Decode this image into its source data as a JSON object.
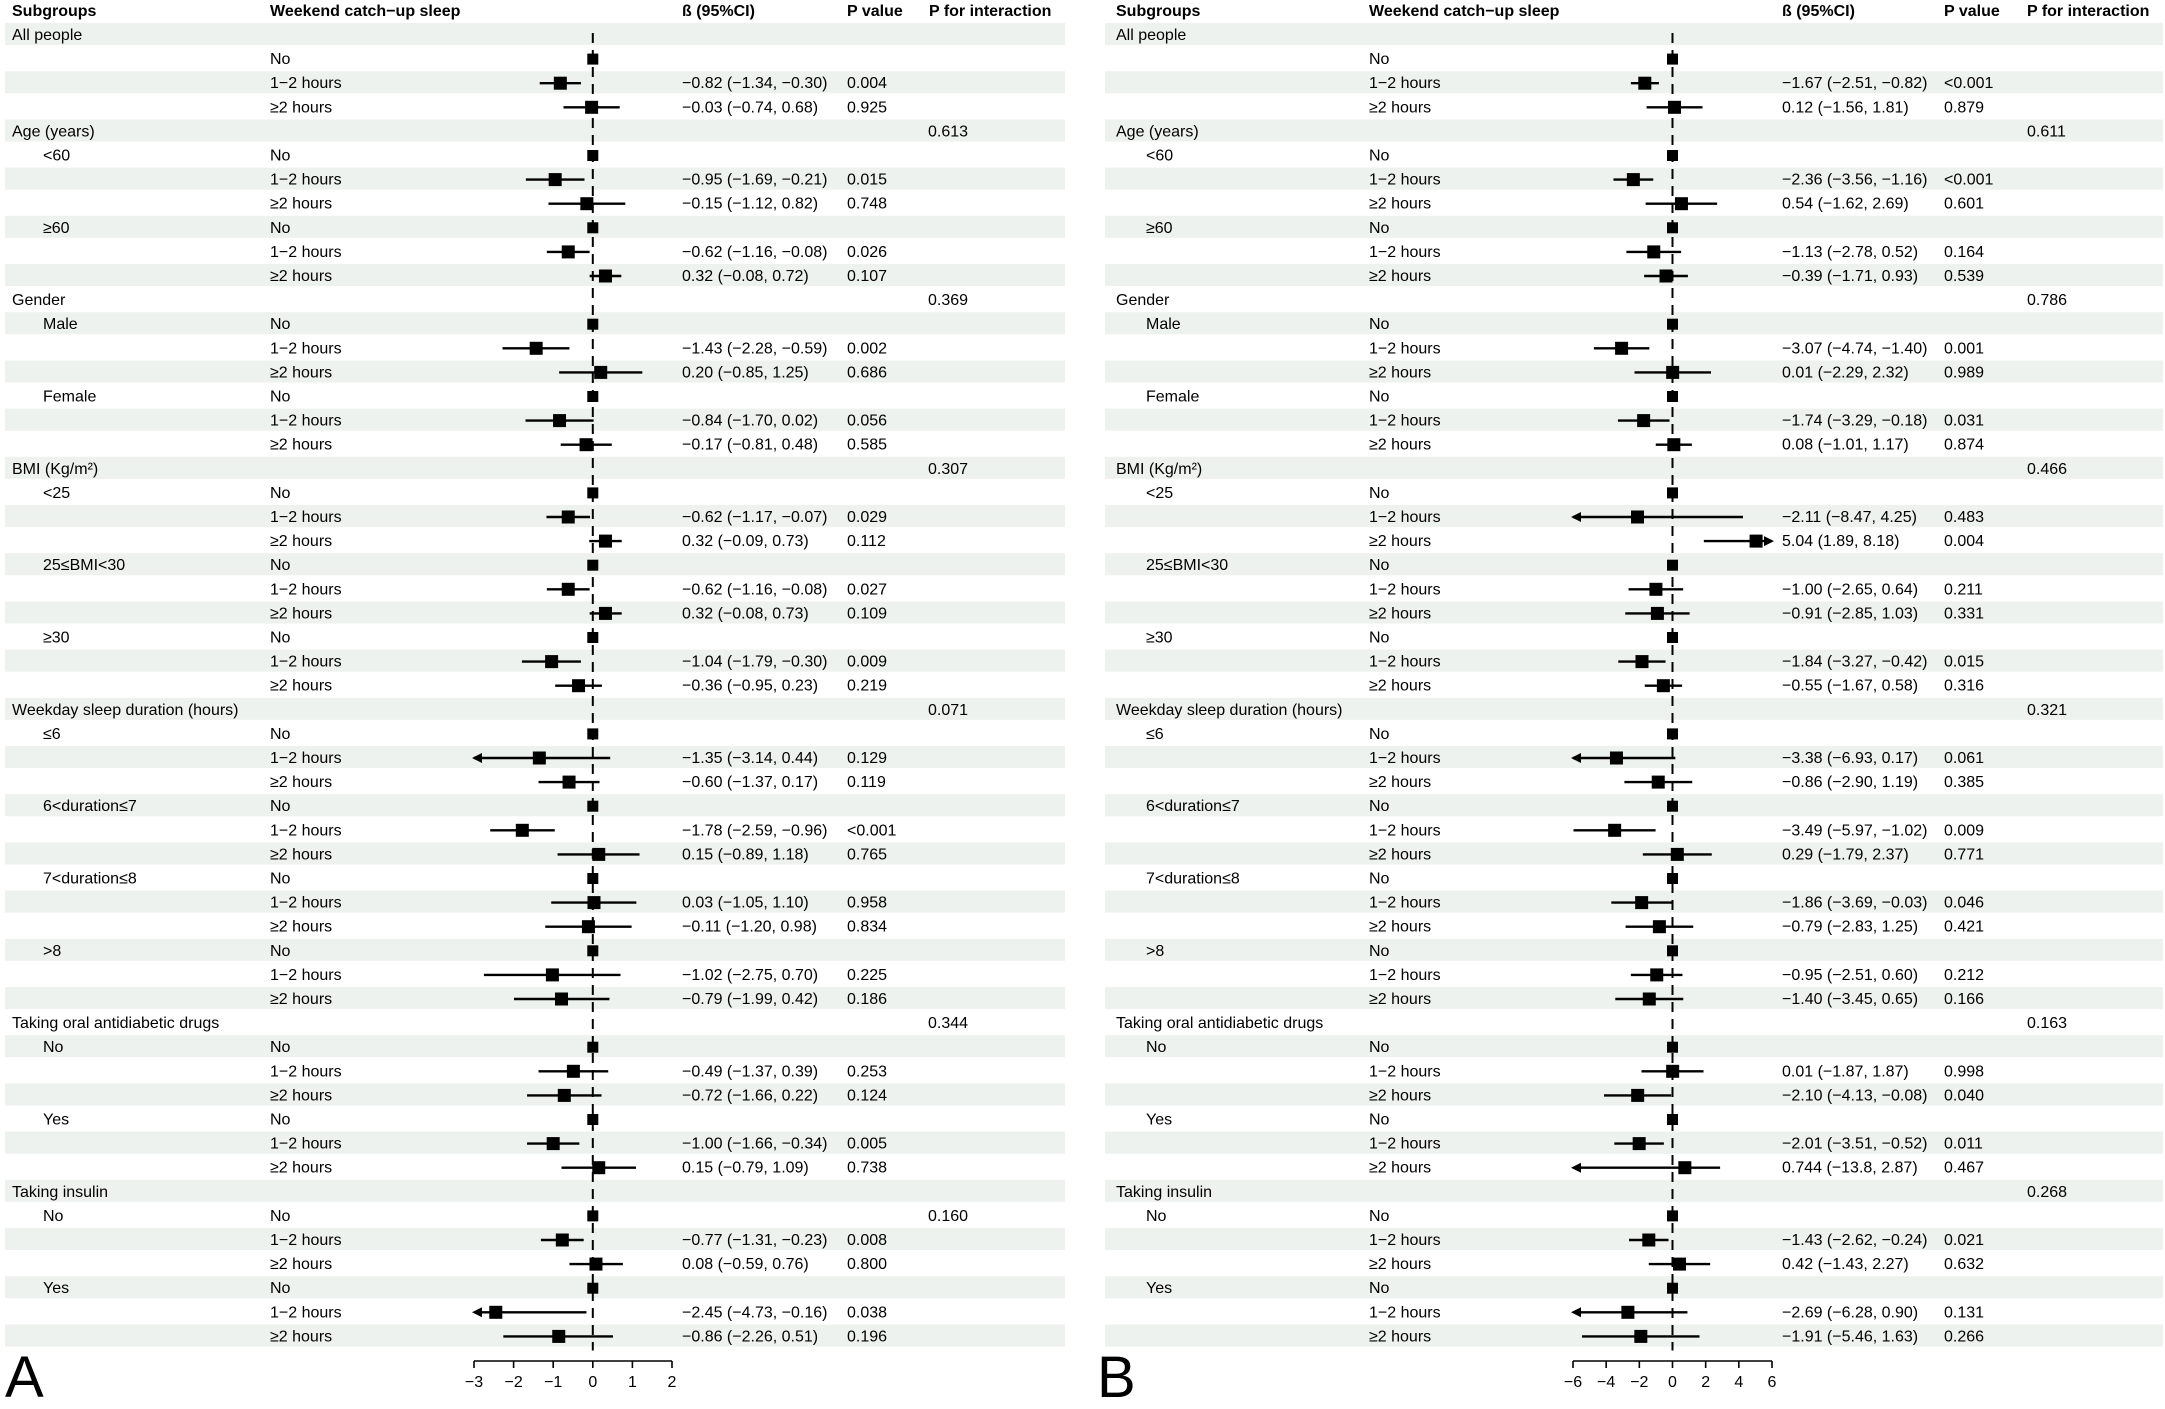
{
  "figure": {
    "headers": {
      "subgroups": "Subgroups",
      "weekend": "Weekend catch−up sleep",
      "beta": "ß (95%CI)",
      "pvalue": "P value",
      "pint": "P for interaction"
    },
    "colors": {
      "band": "#eef2ee",
      "mark": "#000000",
      "ref": "#000000"
    }
  },
  "chart_data": [
    {
      "type": "forest",
      "panel_label": "A",
      "xlim": [
        -3,
        2
      ],
      "ticks": [
        -3,
        -2,
        -1,
        0,
        1,
        2
      ],
      "tick_labels": [
        "−3",
        "−2",
        "−1",
        "0",
        "1",
        "2"
      ],
      "rows": [
        {
          "g": "All people"
        },
        {
          "w": "No",
          "est": 0
        },
        {
          "w": "1−2 hours",
          "est": -0.82,
          "lo": -1.34,
          "hi": -0.3,
          "ci": "−0.82 (−1.34, −0.30)",
          "p": "0.004"
        },
        {
          "w": "≥2 hours",
          "est": -0.03,
          "lo": -0.74,
          "hi": 0.68,
          "ci": "−0.03 (−0.74, 0.68)",
          "p": "0.925"
        },
        {
          "g": "Age (years)",
          "pi": "0.613"
        },
        {
          "s": "<60",
          "w": "No",
          "est": 0
        },
        {
          "w": "1−2 hours",
          "est": -0.95,
          "lo": -1.69,
          "hi": -0.21,
          "ci": "−0.95 (−1.69, −0.21)",
          "p": "0.015"
        },
        {
          "w": "≥2 hours",
          "est": -0.15,
          "lo": -1.12,
          "hi": 0.82,
          "ci": "−0.15 (−1.12, 0.82)",
          "p": "0.748"
        },
        {
          "s": "≥60",
          "w": "No",
          "est": 0
        },
        {
          "w": "1−2 hours",
          "est": -0.62,
          "lo": -1.16,
          "hi": -0.08,
          "ci": "−0.62 (−1.16, −0.08)",
          "p": "0.026"
        },
        {
          "w": "≥2 hours",
          "est": 0.32,
          "lo": -0.08,
          "hi": 0.72,
          "ci": "0.32 (−0.08, 0.72)",
          "p": "0.107"
        },
        {
          "g": "Gender",
          "pi": "0.369"
        },
        {
          "s": "Male",
          "w": "No",
          "est": 0
        },
        {
          "w": "1−2 hours",
          "est": -1.43,
          "lo": -2.28,
          "hi": -0.59,
          "ci": "−1.43 (−2.28, −0.59)",
          "p": "0.002"
        },
        {
          "w": "≥2 hours",
          "est": 0.2,
          "lo": -0.85,
          "hi": 1.25,
          "ci": "0.20 (−0.85, 1.25)",
          "p": "0.686"
        },
        {
          "s": "Female",
          "w": "No",
          "est": 0
        },
        {
          "w": "1−2 hours",
          "est": -0.84,
          "lo": -1.7,
          "hi": 0.02,
          "ci": "−0.84 (−1.70, 0.02)",
          "p": "0.056"
        },
        {
          "w": "≥2 hours",
          "est": -0.17,
          "lo": -0.81,
          "hi": 0.48,
          "ci": "−0.17 (−0.81, 0.48)",
          "p": "0.585"
        },
        {
          "g": "BMI (Kg/m²)",
          "pi": "0.307"
        },
        {
          "s": "<25",
          "w": "No",
          "est": 0
        },
        {
          "w": "1−2 hours",
          "est": -0.62,
          "lo": -1.17,
          "hi": -0.07,
          "ci": "−0.62 (−1.17, −0.07)",
          "p": "0.029"
        },
        {
          "w": "≥2 hours",
          "est": 0.32,
          "lo": -0.09,
          "hi": 0.73,
          "ci": "0.32 (−0.09, 0.73)",
          "p": "0.112"
        },
        {
          "s": "25≤BMI<30",
          "w": "No",
          "est": 0
        },
        {
          "w": "1−2 hours",
          "est": -0.62,
          "lo": -1.16,
          "hi": -0.08,
          "ci": "−0.62 (−1.16, −0.08)",
          "p": "0.027"
        },
        {
          "w": "≥2 hours",
          "est": 0.32,
          "lo": -0.08,
          "hi": 0.73,
          "ci": "0.32 (−0.08, 0.73)",
          "p": "0.109"
        },
        {
          "s": "≥30",
          "w": "No",
          "est": 0
        },
        {
          "w": "1−2 hours",
          "est": -1.04,
          "lo": -1.79,
          "hi": -0.3,
          "ci": "−1.04 (−1.79, −0.30)",
          "p": "0.009"
        },
        {
          "w": "≥2 hours",
          "est": -0.36,
          "lo": -0.95,
          "hi": 0.23,
          "ci": "−0.36 (−0.95, 0.23)",
          "p": "0.219"
        },
        {
          "g": "Weekday sleep duration (hours)",
          "pi": "0.071"
        },
        {
          "s": "≤6",
          "w": "No",
          "est": 0
        },
        {
          "w": "1−2 hours",
          "est": -1.35,
          "lo": -3.14,
          "hi": 0.44,
          "ci": "−1.35 (−3.14, 0.44)",
          "p": "0.129"
        },
        {
          "w": "≥2 hours",
          "est": -0.6,
          "lo": -1.37,
          "hi": 0.17,
          "ci": "−0.60 (−1.37, 0.17)",
          "p": "0.119"
        },
        {
          "s": "6<duration≤7",
          "w": "No",
          "est": 0
        },
        {
          "w": "1−2 hours",
          "est": -1.78,
          "lo": -2.59,
          "hi": -0.96,
          "ci": "−1.78 (−2.59, −0.96)",
          "p": "<0.001"
        },
        {
          "w": "≥2 hours",
          "est": 0.15,
          "lo": -0.89,
          "hi": 1.18,
          "ci": "0.15 (−0.89, 1.18)",
          "p": "0.765"
        },
        {
          "s": "7<duration≤8",
          "w": "No",
          "est": 0
        },
        {
          "w": "1−2 hours",
          "est": 0.03,
          "lo": -1.05,
          "hi": 1.1,
          "ci": "0.03 (−1.05, 1.10)",
          "p": "0.958"
        },
        {
          "w": "≥2 hours",
          "est": -0.11,
          "lo": -1.2,
          "hi": 0.98,
          "ci": "−0.11 (−1.20, 0.98)",
          "p": "0.834"
        },
        {
          "s": ">8",
          "w": "No",
          "est": 0
        },
        {
          "w": "1−2 hours",
          "est": -1.02,
          "lo": -2.75,
          "hi": 0.7,
          "ci": "−1.02 (−2.75, 0.70)",
          "p": "0.225"
        },
        {
          "w": "≥2 hours",
          "est": -0.79,
          "lo": -1.99,
          "hi": 0.42,
          "ci": "−0.79 (−1.99, 0.42)",
          "p": "0.186"
        },
        {
          "g": "Taking oral antidiabetic drugs",
          "pi": "0.344"
        },
        {
          "s": "No",
          "w": "No",
          "est": 0
        },
        {
          "w": "1−2 hours",
          "est": -0.49,
          "lo": -1.37,
          "hi": 0.39,
          "ci": "−0.49 (−1.37, 0.39)",
          "p": "0.253"
        },
        {
          "w": "≥2 hours",
          "est": -0.72,
          "lo": -1.66,
          "hi": 0.22,
          "ci": "−0.72 (−1.66, 0.22)",
          "p": "0.124"
        },
        {
          "s": "Yes",
          "w": "No",
          "est": 0
        },
        {
          "w": "1−2 hours",
          "est": -1.0,
          "lo": -1.66,
          "hi": -0.34,
          "ci": "−1.00 (−1.66, −0.34)",
          "p": "0.005"
        },
        {
          "w": "≥2 hours",
          "est": 0.15,
          "lo": -0.79,
          "hi": 1.09,
          "ci": "0.15 (−0.79, 1.09)",
          "p": "0.738"
        },
        {
          "g": "Taking insulin"
        },
        {
          "s": "No",
          "w": "No",
          "est": 0,
          "pi": "0.160"
        },
        {
          "w": "1−2 hours",
          "est": -0.77,
          "lo": -1.31,
          "hi": -0.23,
          "ci": "−0.77 (−1.31, −0.23)",
          "p": "0.008"
        },
        {
          "w": "≥2 hours",
          "est": 0.08,
          "lo": -0.59,
          "hi": 0.76,
          "ci": "0.08 (−0.59, 0.76)",
          "p": "0.800"
        },
        {
          "s": "Yes",
          "w": "No",
          "est": 0
        },
        {
          "w": "1−2 hours",
          "est": -2.45,
          "lo": -4.73,
          "hi": -0.16,
          "ci": "−2.45 (−4.73, −0.16)",
          "p": "0.038"
        },
        {
          "w": "≥2 hours",
          "est": -0.86,
          "lo": -2.26,
          "hi": 0.51,
          "ci": "−0.86 (−2.26, 0.51)",
          "p": "0.196"
        }
      ]
    },
    {
      "type": "forest",
      "panel_label": "B",
      "xlim": [
        -6,
        6
      ],
      "ticks": [
        -6,
        -4,
        -2,
        0,
        2,
        4,
        6
      ],
      "tick_labels": [
        "−6",
        "−4",
        "−2",
        "0",
        "2",
        "4",
        "6"
      ],
      "rows": [
        {
          "g": "All people"
        },
        {
          "w": "No",
          "est": 0
        },
        {
          "w": "1−2 hours",
          "est": -1.67,
          "lo": -2.51,
          "hi": -0.82,
          "ci": "−1.67 (−2.51, −0.82)",
          "p": "<0.001"
        },
        {
          "w": "≥2 hours",
          "est": 0.12,
          "lo": -1.56,
          "hi": 1.81,
          "ci": "0.12 (−1.56, 1.81)",
          "p": "0.879"
        },
        {
          "g": "Age (years)",
          "pi": "0.611"
        },
        {
          "s": "<60",
          "w": "No",
          "est": 0
        },
        {
          "w": "1−2 hours",
          "est": -2.36,
          "lo": -3.56,
          "hi": -1.16,
          "ci": "−2.36 (−3.56, −1.16)",
          "p": "<0.001"
        },
        {
          "w": "≥2 hours",
          "est": 0.54,
          "lo": -1.62,
          "hi": 2.69,
          "ci": "0.54 (−1.62, 2.69)",
          "p": "0.601"
        },
        {
          "s": "≥60",
          "w": "No",
          "est": 0
        },
        {
          "w": "1−2 hours",
          "est": -1.13,
          "lo": -2.78,
          "hi": 0.52,
          "ci": "−1.13 (−2.78, 0.52)",
          "p": "0.164"
        },
        {
          "w": "≥2 hours",
          "est": -0.39,
          "lo": -1.71,
          "hi": 0.93,
          "ci": "−0.39 (−1.71, 0.93)",
          "p": "0.539"
        },
        {
          "g": "Gender",
          "pi": "0.786"
        },
        {
          "s": "Male",
          "w": "No",
          "est": 0
        },
        {
          "w": "1−2 hours",
          "est": -3.07,
          "lo": -4.74,
          "hi": -1.4,
          "ci": "−3.07 (−4.74, −1.40)",
          "p": "0.001"
        },
        {
          "w": "≥2 hours",
          "est": 0.01,
          "lo": -2.29,
          "hi": 2.32,
          "ci": "0.01 (−2.29, 2.32)",
          "p": "0.989"
        },
        {
          "s": "Female",
          "w": "No",
          "est": 0
        },
        {
          "w": "1−2 hours",
          "est": -1.74,
          "lo": -3.29,
          "hi": -0.18,
          "ci": "−1.74 (−3.29, −0.18)",
          "p": "0.031"
        },
        {
          "w": "≥2 hours",
          "est": 0.08,
          "lo": -1.01,
          "hi": 1.17,
          "ci": "0.08 (−1.01, 1.17)",
          "p": "0.874"
        },
        {
          "g": "BMI (Kg/m²)",
          "pi": "0.466"
        },
        {
          "s": "<25",
          "w": "No",
          "est": 0
        },
        {
          "w": "1−2 hours",
          "est": -2.11,
          "lo": -8.47,
          "hi": 4.25,
          "ci": "−2.11 (−8.47, 4.25)",
          "p": "0.483"
        },
        {
          "w": "≥2 hours",
          "est": 5.04,
          "lo": 1.89,
          "hi": 8.18,
          "ci": "5.04 (1.89, 8.18)",
          "p": "0.004"
        },
        {
          "s": "25≤BMI<30",
          "w": "No",
          "est": 0
        },
        {
          "w": "1−2 hours",
          "est": -1.0,
          "lo": -2.65,
          "hi": 0.64,
          "ci": "−1.00 (−2.65, 0.64)",
          "p": "0.211"
        },
        {
          "w": "≥2 hours",
          "est": -0.91,
          "lo": -2.85,
          "hi": 1.03,
          "ci": "−0.91 (−2.85, 1.03)",
          "p": "0.331"
        },
        {
          "s": "≥30",
          "w": "No",
          "est": 0
        },
        {
          "w": "1−2 hours",
          "est": -1.84,
          "lo": -3.27,
          "hi": -0.42,
          "ci": "−1.84 (−3.27, −0.42)",
          "p": "0.015"
        },
        {
          "w": "≥2 hours",
          "est": -0.55,
          "lo": -1.67,
          "hi": 0.58,
          "ci": "−0.55 (−1.67, 0.58)",
          "p": "0.316"
        },
        {
          "g": "Weekday sleep duration (hours)",
          "pi": "0.321"
        },
        {
          "s": "≤6",
          "w": "No",
          "est": 0
        },
        {
          "w": "1−2 hours",
          "est": -3.38,
          "lo": -6.93,
          "hi": 0.17,
          "ci": "−3.38 (−6.93, 0.17)",
          "p": "0.061"
        },
        {
          "w": "≥2 hours",
          "est": -0.86,
          "lo": -2.9,
          "hi": 1.19,
          "ci": "−0.86 (−2.90, 1.19)",
          "p": "0.385"
        },
        {
          "s": "6<duration≤7",
          "w": "No",
          "est": 0
        },
        {
          "w": "1−2 hours",
          "est": -3.49,
          "lo": -5.97,
          "hi": -1.02,
          "ci": "−3.49 (−5.97, −1.02)",
          "p": "0.009"
        },
        {
          "w": "≥2 hours",
          "est": 0.29,
          "lo": -1.79,
          "hi": 2.37,
          "ci": "0.29 (−1.79, 2.37)",
          "p": "0.771"
        },
        {
          "s": "7<duration≤8",
          "w": "No",
          "est": 0
        },
        {
          "w": "1−2 hours",
          "est": -1.86,
          "lo": -3.69,
          "hi": -0.03,
          "ci": "−1.86 (−3.69, −0.03)",
          "p": "0.046"
        },
        {
          "w": "≥2 hours",
          "est": -0.79,
          "lo": -2.83,
          "hi": 1.25,
          "ci": "−0.79 (−2.83, 1.25)",
          "p": "0.421"
        },
        {
          "s": ">8",
          "w": "No",
          "est": 0
        },
        {
          "w": "1−2 hours",
          "est": -0.95,
          "lo": -2.51,
          "hi": 0.6,
          "ci": "−0.95 (−2.51, 0.60)",
          "p": "0.212"
        },
        {
          "w": "≥2 hours",
          "est": -1.4,
          "lo": -3.45,
          "hi": 0.65,
          "ci": "−1.40 (−3.45, 0.65)",
          "p": "0.166"
        },
        {
          "g": "Taking oral antidiabetic drugs",
          "pi": "0.163"
        },
        {
          "s": "No",
          "w": "No",
          "est": 0
        },
        {
          "w": "1−2 hours",
          "est": 0.01,
          "lo": -1.87,
          "hi": 1.87,
          "ci": "0.01 (−1.87, 1.87)",
          "p": "0.998"
        },
        {
          "w": "≥2 hours",
          "est": -2.1,
          "lo": -4.13,
          "hi": -0.08,
          "ci": "−2.10 (−4.13, −0.08)",
          "p": "0.040"
        },
        {
          "s": "Yes",
          "w": "No",
          "est": 0
        },
        {
          "w": "1−2 hours",
          "est": -2.01,
          "lo": -3.51,
          "hi": -0.52,
          "ci": "−2.01 (−3.51, −0.52)",
          "p": "0.011"
        },
        {
          "w": "≥2 hours",
          "est": 0.744,
          "lo": -13.8,
          "hi": 2.87,
          "ci": "0.744 (−13.8, 2.87)",
          "p": "0.467"
        },
        {
          "g": "Taking insulin",
          "pi": "0.268"
        },
        {
          "s": "No",
          "w": "No",
          "est": 0
        },
        {
          "w": "1−2 hours",
          "est": -1.43,
          "lo": -2.62,
          "hi": -0.24,
          "ci": "−1.43 (−2.62, −0.24)",
          "p": "0.021"
        },
        {
          "w": "≥2 hours",
          "est": 0.42,
          "lo": -1.43,
          "hi": 2.27,
          "ci": "0.42 (−1.43, 2.27)",
          "p": "0.632"
        },
        {
          "s": "Yes",
          "w": "No",
          "est": 0
        },
        {
          "w": "1−2 hours",
          "est": -2.69,
          "lo": -6.28,
          "hi": 0.9,
          "ci": "−2.69 (−6.28, 0.90)",
          "p": "0.131"
        },
        {
          "w": "≥2 hours",
          "est": -1.91,
          "lo": -5.46,
          "hi": 1.63,
          "ci": "−1.91 (−5.46, 1.63)",
          "p": "0.266"
        }
      ]
    }
  ]
}
